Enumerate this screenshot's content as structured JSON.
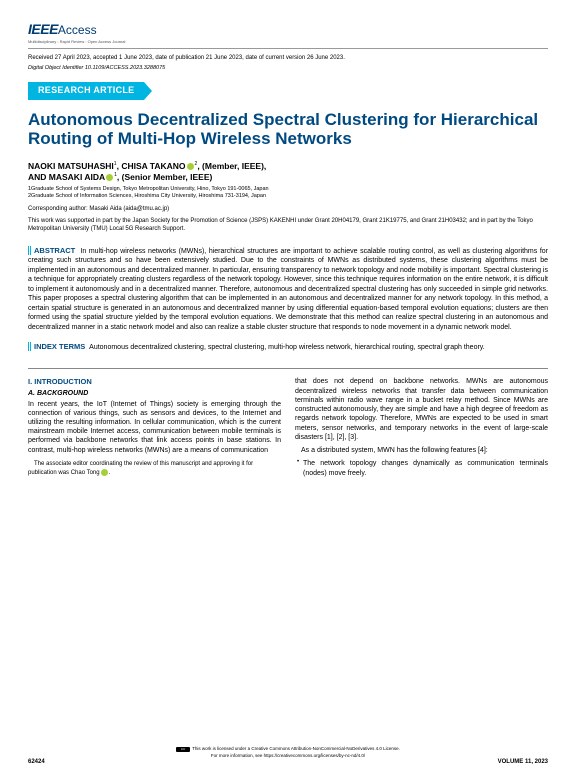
{
  "journal": {
    "logo_prefix": "IEEE",
    "logo_suffix": "Access",
    "tagline": "Multidisciplinary : Rapid Review : Open Access Journal"
  },
  "meta": {
    "received": "Received 27 April 2023, accepted 1 June 2023, date of publication 21 June 2023, date of current version 26 June 2023.",
    "doi": "Digital Object Identifier 10.1109/ACCESS.2023.3288075"
  },
  "badge": "RESEARCH ARTICLE",
  "title": "Autonomous Decentralized Spectral Clustering for Hierarchical Routing of Multi-Hop Wireless Networks",
  "authors": {
    "a1": "NAOKI MATSUHASHI",
    "a1_sup": "1",
    "sep1": ", ",
    "a2": "CHISA TAKANO",
    "a2_sup": "2",
    "a2_role": ", (Member, IEEE),",
    "and": "AND ",
    "a3": "MASAKI AIDA",
    "a3_sup": "1",
    "a3_role": ", (Senior Member, IEEE)"
  },
  "affil": {
    "l1": "1Graduate School of Systems Design, Tokyo Metropolitan University, Hino, Tokyo 191-0065, Japan",
    "l2": "2Graduate School of Information Sciences, Hiroshima City University, Hiroshima 731-3194, Japan"
  },
  "corr": "Corresponding author: Masaki Aida (aida@tmu.ac.jp)",
  "funding": "This work was supported in part by the Japan Society for the Promotion of Science (JSPS) KAKENHI under Grant 20H04179, Grant 21K19775, and Grant 21H03432; and in part by the Tokyo Metropolitan University (TMU) Local 5G Research Support.",
  "abstract": {
    "label": "ABSTRACT",
    "text": "In multi-hop wireless networks (MWNs), hierarchical structures are important to achieve scalable routing control, as well as clustering algorithms for creating such structures and so have been extensively studied. Due to the constraints of MWNs as distributed systems, these clustering algorithms must be implemented in an autonomous and decentralized manner. In particular, ensuring transparency to network topology and node mobility is important. Spectral clustering is a technique for appropriately creating clusters regardless of the network topology. However, since this technique requires information on the entire network, it is difficult to implement it autonomously and in a decentralized manner. Therefore, autonomous and decentralized spectral clustering has only succeeded in simple grid networks. This paper proposes a spectral clustering algorithm that can be implemented in an autonomous and decentralized manner for any network topology. In this method, a certain spatial structure is generated in an autonomous and decentralized manner by using differential equation-based temporal evolution equations; clusters are then formed using the spatial structure yielded by the temporal evolution equations. We demonstrate that this method can realize spectral clustering in an autonomous and decentralized manner in a static network model and also can realize a stable cluster structure that responds to node movement in a dynamic network model."
  },
  "index": {
    "label": "INDEX TERMS",
    "text": "Autonomous decentralized clustering, spectral clustering, multi-hop wireless network, hierarchical routing, spectral graph theory."
  },
  "intro": {
    "head": "I. INTRODUCTION",
    "subhead": "A. BACKGROUND",
    "p1": "In recent years, the IoT (Internet of Things) society is emerging through the connection of various things, such as sensors and devices, to the Internet and utilizing the resulting information. In cellular communication, which is the current mainstream mobile Internet access, communication between mobile terminals is performed via backbone networks that link access points in base stations. In contrast, multi-hop wireless networks (MWNs) are a means of communication",
    "editor": "The associate editor coordinating the review of this manuscript and approving it for publication was Chao Tong",
    "p2": "that does not depend on backbone networks. MWNs are autonomous decentralized wireless networks that transfer data between communication terminals within radio wave range in a bucket relay method. Since MWNs are constructed autonomously, they are simple and have a high degree of freedom as regards network topology. Therefore, MWNs are expected to be used in smart meters, sensor networks, and temporary networks in the event of large-scale disasters [1], [2], [3].",
    "p3_lead": "As a distributed system, MWN has the following features [4]:",
    "bullet1": "The network topology changes dynamically as communication terminals (nodes) move freely."
  },
  "footer": {
    "cc1": "This work is licensed under a Creative Commons Attribution-NonCommercial-NoDerivatives 4.0 License.",
    "cc2": "For more information, see https://creativecommons.org/licenses/by-nc-nd/4.0/",
    "page": "62424",
    "vol": "VOLUME 11, 2023"
  },
  "colors": {
    "brand_blue": "#004a82",
    "accent_cyan": "#00b5e2",
    "orcid_green": "#a6ce39"
  }
}
